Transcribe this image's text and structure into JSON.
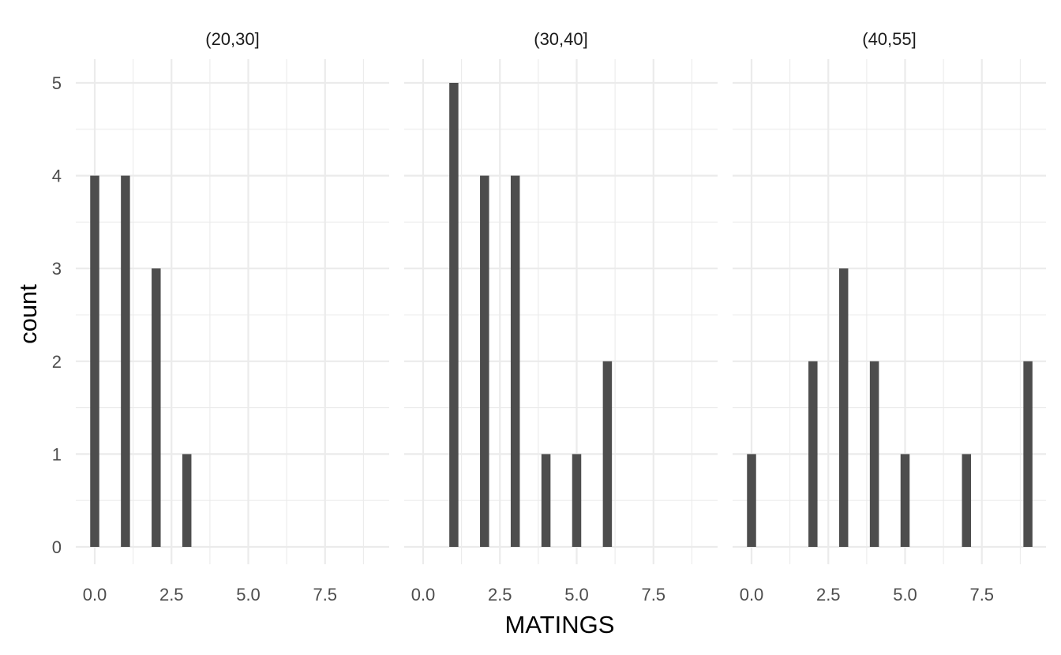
{
  "chart_data": {
    "type": "bar",
    "facet_by": "AGE",
    "xlabel": "MATINGS",
    "ylabel": "count",
    "xlim": [
      -0.5,
      9.5
    ],
    "ylim": [
      0,
      5
    ],
    "x_ticks": [
      "0.0",
      "2.5",
      "5.0",
      "7.5"
    ],
    "y_ticks": [
      "0",
      "1",
      "2",
      "3",
      "4",
      "5"
    ],
    "grid": true,
    "panels": [
      {
        "label": "(20,30]",
        "x": [
          0,
          1,
          2,
          3
        ],
        "values": [
          4,
          4,
          3,
          1
        ]
      },
      {
        "label": "(30,40]",
        "x": [
          1,
          2,
          3,
          4,
          5,
          6
        ],
        "values": [
          5,
          4,
          4,
          1,
          1,
          2
        ]
      },
      {
        "label": "(40,55]",
        "x": [
          0,
          2,
          3,
          4,
          5,
          7,
          9
        ],
        "values": [
          1,
          2,
          3,
          2,
          1,
          1,
          2
        ]
      }
    ]
  },
  "colors": {
    "bar": "#4d4d4d",
    "grid": "#ebebeb"
  }
}
